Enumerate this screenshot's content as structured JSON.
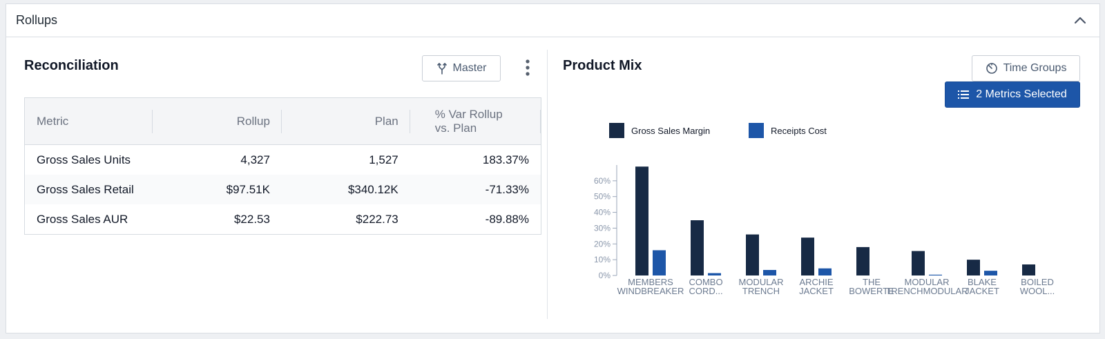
{
  "panel": {
    "title": "Rollups"
  },
  "reconciliation": {
    "title": "Reconciliation",
    "master_label": "Master",
    "columns": [
      "Metric",
      "Rollup",
      "Plan",
      "% Var Rollup",
      "vs. Plan"
    ],
    "rows": [
      {
        "metric": "Gross Sales Units",
        "rollup": "4,327",
        "plan": "1,527",
        "var": "183.37%"
      },
      {
        "metric": "Gross Sales Retail",
        "rollup": "$97.51K",
        "plan": "$340.12K",
        "var": "-71.33%"
      },
      {
        "metric": "Gross Sales AUR",
        "rollup": "$22.53",
        "plan": "$222.73",
        "var": "-89.88%"
      }
    ]
  },
  "product_mix": {
    "title": "Product Mix",
    "time_groups_label": "Time Groups",
    "metrics_label": "2 Metrics Selected"
  },
  "colors": {
    "series1": "#172a45",
    "series2": "#1d56a8",
    "accent": "#1d56a8"
  },
  "chart_data": {
    "type": "bar",
    "categories": [
      [
        "MEMBERS",
        "WINDBREAKER"
      ],
      [
        "COMBO",
        "CORD..."
      ],
      [
        "MODULAR",
        "TRENCH"
      ],
      [
        "ARCHIE",
        "JACKET"
      ],
      [
        "THE",
        "BOWERTE"
      ],
      [
        "MODULAR",
        "TRENCHMODULAR"
      ],
      [
        "BLAKE",
        "JACKET"
      ],
      [
        "BOILED",
        "WOOL..."
      ]
    ],
    "series": [
      {
        "name": "Gross Sales Margin",
        "values": [
          69,
          35,
          26,
          24,
          18,
          15.5,
          10,
          7
        ]
      },
      {
        "name": "Receipts Cost",
        "values": [
          16,
          1.5,
          3.5,
          4.5,
          0,
          0.5,
          3,
          0
        ]
      }
    ],
    "yticks": [
      "0%",
      "10%",
      "20%",
      "30%",
      "40%",
      "50%",
      "60%"
    ],
    "ylim": [
      0,
      70
    ],
    "legend_position": "top-left"
  }
}
